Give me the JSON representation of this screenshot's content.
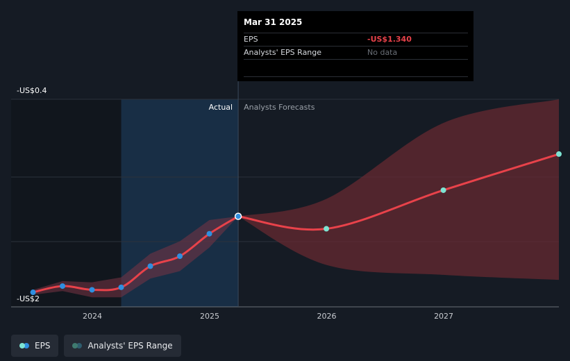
{
  "tooltip": {
    "date": "Mar 31 2025",
    "eps_label": "EPS",
    "eps_value": "-US$1.340",
    "range_label": "Analysts' EPS Range",
    "range_value": "No data"
  },
  "labels": {
    "actual": "Actual",
    "forecast": "Analysts Forecasts"
  },
  "legend": {
    "eps": "EPS",
    "range": "Analysts' EPS Range"
  },
  "colors": {
    "background": "#151b24",
    "eps_line": "#e8424a",
    "actual_point": "#2f8fe0",
    "forecast_point": "#7de3d2",
    "range_fill": "#6b2a32",
    "actual_shade": "#1a3550"
  },
  "chart_data": {
    "type": "line",
    "xlabel": "",
    "ylabel": "",
    "x_ticks": [
      "2024",
      "2025",
      "2026",
      "2027"
    ],
    "y_ticks": [
      "-US$0.4",
      "-US$2"
    ],
    "ylim": [
      -2,
      -0.4
    ],
    "grid": true,
    "series": [
      {
        "name": "EPS",
        "kind": "actual",
        "x": [
          "2023-06-30",
          "2023-09-30",
          "2023-12-31",
          "2024-03-31",
          "2024-06-30",
          "2024-09-30",
          "2024-12-31",
          "2025-03-31"
        ],
        "y": [
          -1.95,
          -1.9,
          -1.93,
          -1.91,
          -1.74,
          -1.66,
          -1.48,
          -1.34
        ]
      },
      {
        "name": "EPS",
        "kind": "forecast",
        "x": [
          "2025-03-31",
          "2025-12-31",
          "2026-12-31",
          "2027-12-31"
        ],
        "y": [
          -1.34,
          -1.44,
          -1.13,
          -0.84
        ]
      },
      {
        "name": "Analysts' EPS Range",
        "kind": "range",
        "x": [
          "2025-03-31",
          "2025-12-31",
          "2026-12-31",
          "2027-12-31"
        ],
        "low": [
          -1.34,
          -1.73,
          -1.81,
          -1.85
        ],
        "high": [
          -1.34,
          -1.2,
          -0.59,
          -0.4
        ]
      }
    ]
  }
}
